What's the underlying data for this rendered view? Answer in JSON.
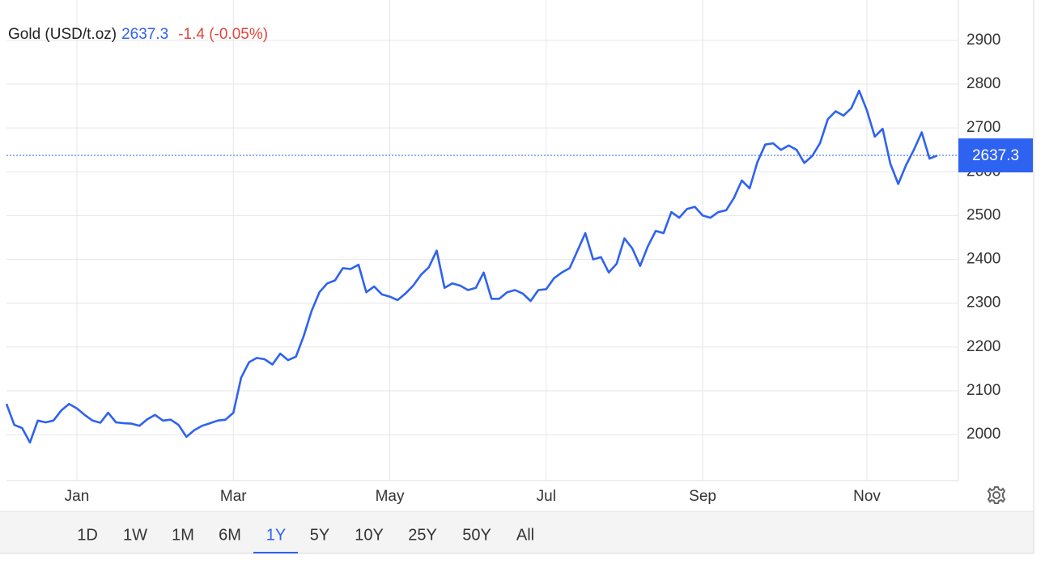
{
  "chart_data": {
    "type": "line",
    "title": "Gold (USD/t.oz)",
    "last_price": 2637.3,
    "change": "-1.4 (-0.05%)",
    "categories": [
      null,
      null,
      null,
      null,
      null,
      null,
      null,
      null,
      null,
      "Jan",
      null,
      null,
      null,
      null,
      null,
      null,
      null,
      null,
      null,
      null,
      null,
      null,
      null,
      null,
      null,
      null,
      null,
      null,
      null,
      "Mar",
      null,
      null,
      null,
      null,
      null,
      null,
      null,
      null,
      null,
      null,
      null,
      null,
      null,
      null,
      null,
      null,
      null,
      null,
      null,
      "May",
      null,
      null,
      null,
      null,
      null,
      null,
      null,
      null,
      null,
      null,
      null,
      null,
      null,
      null,
      null,
      null,
      null,
      null,
      null,
      "Jul",
      null,
      null,
      null,
      null,
      null,
      null,
      null,
      null,
      null,
      null,
      null,
      null,
      null,
      null,
      null,
      null,
      null,
      null,
      null,
      "Sep",
      null,
      null,
      null,
      null,
      null,
      null,
      null,
      null,
      null,
      null,
      null,
      null,
      null,
      null,
      null,
      null,
      null,
      null,
      null,
      null,
      "Nov",
      null,
      null,
      null,
      null,
      null,
      null,
      null,
      null,
      null
    ],
    "values": [
      2070,
      2022,
      2015,
      1982,
      2032,
      2028,
      2032,
      2055,
      2070,
      2060,
      2045,
      2032,
      2027,
      2050,
      2028,
      2026,
      2025,
      2020,
      2035,
      2045,
      2032,
      2034,
      2022,
      1995,
      2010,
      2020,
      2026,
      2032,
      2034,
      2050,
      2130,
      2165,
      2175,
      2172,
      2160,
      2185,
      2170,
      2178,
      2225,
      2282,
      2325,
      2345,
      2352,
      2380,
      2378,
      2388,
      2325,
      2338,
      2320,
      2315,
      2307,
      2322,
      2340,
      2365,
      2382,
      2420,
      2335,
      2345,
      2340,
      2330,
      2335,
      2370,
      2310,
      2310,
      2325,
      2330,
      2322,
      2305,
      2330,
      2332,
      2357,
      2370,
      2380,
      2420,
      2460,
      2400,
      2405,
      2370,
      2390,
      2448,
      2425,
      2385,
      2430,
      2465,
      2460,
      2508,
      2495,
      2515,
      2520,
      2500,
      2495,
      2508,
      2512,
      2540,
      2580,
      2562,
      2622,
      2662,
      2665,
      2650,
      2660,
      2650,
      2620,
      2636,
      2665,
      2720,
      2738,
      2728,
      2745,
      2785,
      2740,
      2680,
      2698,
      2618,
      2572,
      2615,
      2650,
      2690,
      2630,
      2637
    ],
    "color": "#2e62f0",
    "ylim": [
      1895,
      2992
    ],
    "yticks": [
      2000,
      2100,
      2200,
      2300,
      2400,
      2500,
      2600,
      2700,
      2800,
      2900
    ],
    "grid": true,
    "ranges": [
      "1D",
      "1W",
      "1M",
      "6M",
      "1Y",
      "5Y",
      "10Y",
      "25Y",
      "50Y",
      "All"
    ],
    "selected_range": "1Y"
  }
}
